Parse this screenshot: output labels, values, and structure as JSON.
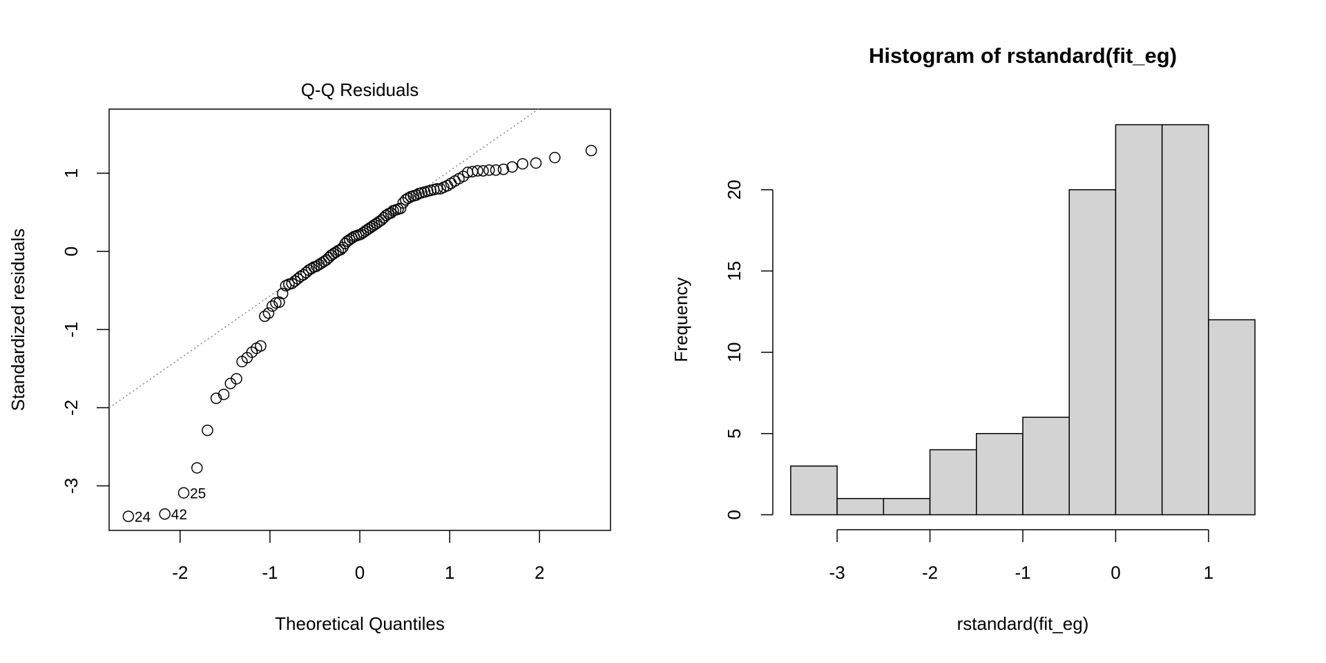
{
  "chart_data": [
    {
      "type": "scatter",
      "title": "Q-Q Residuals",
      "xlabel": "Theoretical Quantiles",
      "ylabel": "Standardized residuals",
      "xlim": [
        -2.79,
        2.79
      ],
      "ylim": [
        -3.57,
        1.82
      ],
      "xticks": [
        -2,
        -1,
        0,
        1,
        2
      ],
      "yticks": [
        -3,
        -2,
        -1,
        0,
        1
      ],
      "n": 100,
      "sorted_residuals": [
        -3.39,
        -3.36,
        -3.09,
        -2.77,
        -2.29,
        -1.88,
        -1.83,
        -1.69,
        -1.63,
        -1.41,
        -1.36,
        -1.29,
        -1.24,
        -1.21,
        -0.83,
        -0.79,
        -0.7,
        -0.66,
        -0.65,
        -0.54,
        -0.44,
        -0.42,
        -0.41,
        -0.38,
        -0.35,
        -0.32,
        -0.3,
        -0.27,
        -0.24,
        -0.22,
        -0.2,
        -0.19,
        -0.17,
        -0.15,
        -0.13,
        -0.11,
        -0.08,
        -0.05,
        -0.03,
        -0.01,
        0.01,
        0.02,
        0.05,
        0.1,
        0.13,
        0.15,
        0.17,
        0.19,
        0.2,
        0.21,
        0.22,
        0.24,
        0.26,
        0.28,
        0.3,
        0.32,
        0.34,
        0.36,
        0.38,
        0.4,
        0.43,
        0.46,
        0.48,
        0.49,
        0.52,
        0.53,
        0.54,
        0.55,
        0.62,
        0.66,
        0.68,
        0.7,
        0.71,
        0.72,
        0.74,
        0.75,
        0.76,
        0.77,
        0.78,
        0.79,
        0.8,
        0.8,
        0.82,
        0.84,
        0.87,
        0.9,
        0.93,
        0.96,
        1.01,
        1.02,
        1.03,
        1.03,
        1.04,
        1.04,
        1.05,
        1.08,
        1.12,
        1.13,
        1.2,
        1.29
      ],
      "labeled_points": [
        {
          "rank": 1,
          "label": "24"
        },
        {
          "rank": 2,
          "label": "42"
        },
        {
          "rank": 3,
          "label": "25"
        }
      ],
      "reference_line": {
        "slope": 0.8,
        "intercept": 0.23,
        "style": "dotted",
        "color": "#808080"
      }
    },
    {
      "type": "bar",
      "title": "Histogram of rstandard(fit_eg)",
      "xlabel": "rstandard(fit_eg)",
      "ylabel": "Frequency",
      "bin_edges": [
        -3.5,
        -3,
        -2.5,
        -2,
        -1.5,
        -1,
        -0.5,
        0,
        0.5,
        1,
        1.5
      ],
      "values": [
        3,
        1,
        1,
        4,
        5,
        6,
        20,
        24,
        24,
        12
      ],
      "xlim": [
        -3.7,
        1.7
      ],
      "ylim": [
        -0.96,
        24.96
      ],
      "xticks": [
        -3,
        -2,
        -1,
        0,
        1
      ],
      "yticks": [
        0,
        5,
        10,
        15,
        20
      ],
      "bar_color": "#d3d3d3"
    }
  ]
}
